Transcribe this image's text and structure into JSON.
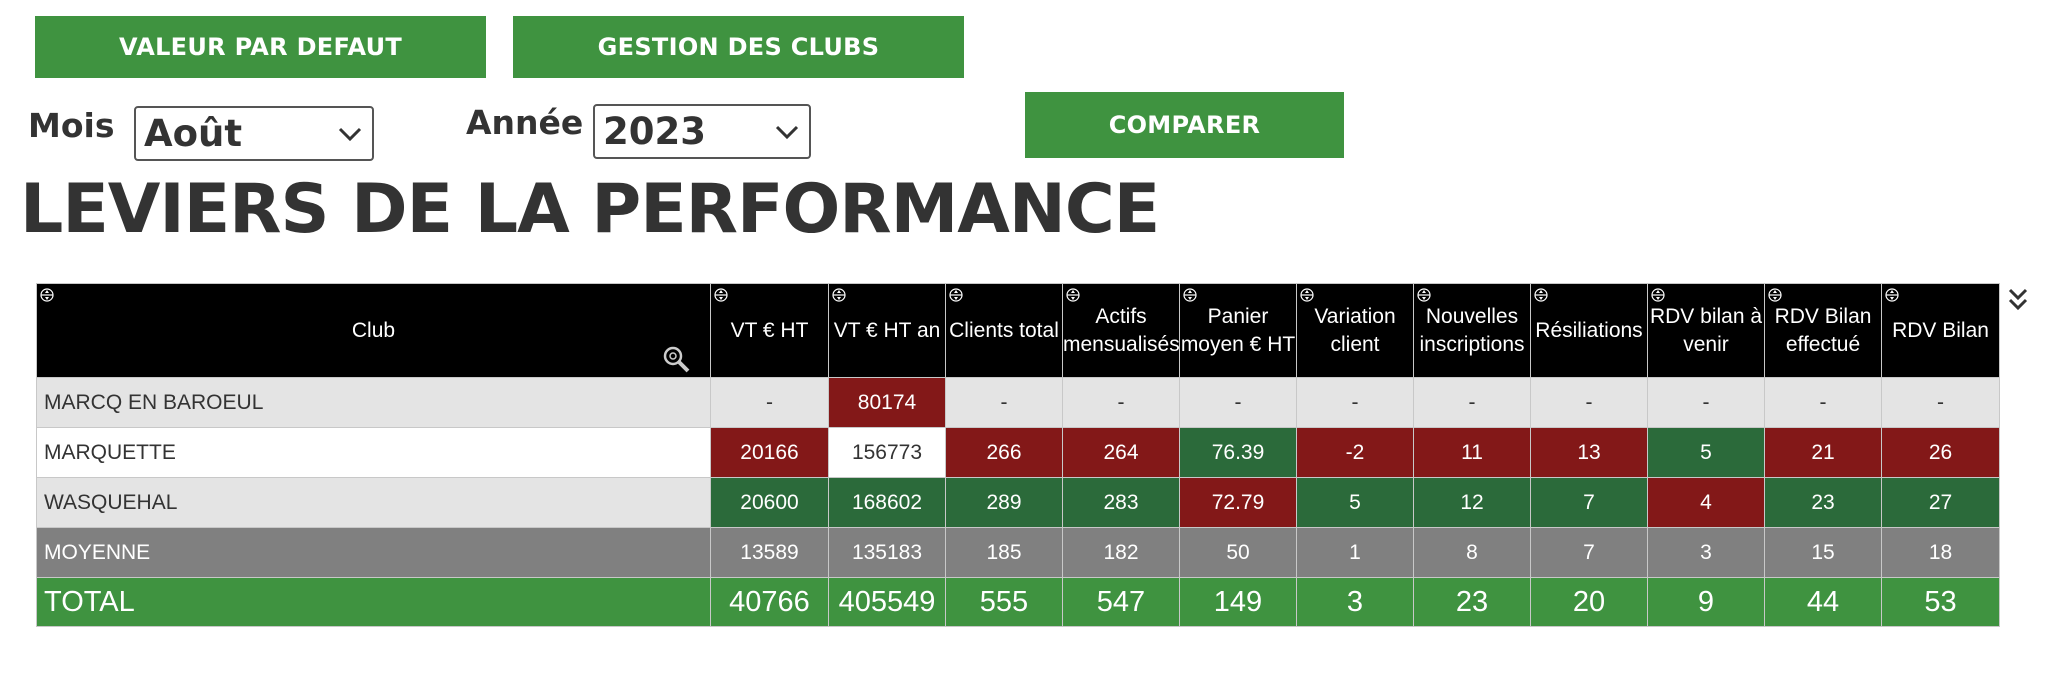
{
  "buttons": {
    "default_values": "VALEUR PAR DEFAUT",
    "club_management": "GESTION DES CLUBS",
    "compare": "COMPARER"
  },
  "filters": {
    "month_label": "Mois",
    "month_value": "Août",
    "year_label": "Année",
    "year_value": "2023"
  },
  "page_title": "LEVIERS DE LA PERFORMANCE",
  "table": {
    "headers": [
      "Club",
      "VT € HT",
      "VT € HT an",
      "Clients total",
      "Actifs mensualisés",
      "Panier moyen € HT",
      "Variation client",
      "Nouvelles inscriptions",
      "Résiliations",
      "RDV bilan à venir",
      "RDV Bilan effectué",
      "RDV Bilan"
    ],
    "rows": [
      {
        "club": "MARCQ EN BAROEUL",
        "values": [
          "-",
          "80174",
          "-",
          "-",
          "-",
          "-",
          "-",
          "-",
          "-",
          "-",
          "-"
        ],
        "status": [
          "empty",
          "red",
          "empty",
          "empty",
          "empty",
          "empty",
          "empty",
          "empty",
          "empty",
          "empty",
          "empty"
        ]
      },
      {
        "club": "MARQUETTE",
        "values": [
          "20166",
          "156773",
          "266",
          "264",
          "76.39",
          "-2",
          "11",
          "13",
          "5",
          "21",
          "26"
        ],
        "status": [
          "red",
          "white",
          "red",
          "red",
          "green",
          "red",
          "red",
          "red",
          "green",
          "red",
          "red"
        ]
      },
      {
        "club": "WASQUEHAL",
        "values": [
          "20600",
          "168602",
          "289",
          "283",
          "72.79",
          "5",
          "12",
          "7",
          "4",
          "23",
          "27"
        ],
        "status": [
          "green",
          "green",
          "green",
          "green",
          "red",
          "green",
          "green",
          "green",
          "red",
          "green",
          "green"
        ]
      }
    ],
    "average": {
      "label": "MOYENNE",
      "values": [
        "13589",
        "135183",
        "185",
        "182",
        "50",
        "1",
        "8",
        "7",
        "3",
        "15",
        "18"
      ]
    },
    "total": {
      "label": "TOTAL",
      "values": [
        "40766",
        "405549",
        "555",
        "547",
        "149",
        "3",
        "23",
        "20",
        "9",
        "44",
        "53"
      ]
    }
  },
  "colors": {
    "accent_green": "#3f9340",
    "good": "#2b6a3a",
    "bad": "#831818",
    "header": "#000000"
  },
  "icons": [
    "sort-icon",
    "search-zoom-icon",
    "chevron-down-icon",
    "collapse-double-chevron-icon"
  ]
}
